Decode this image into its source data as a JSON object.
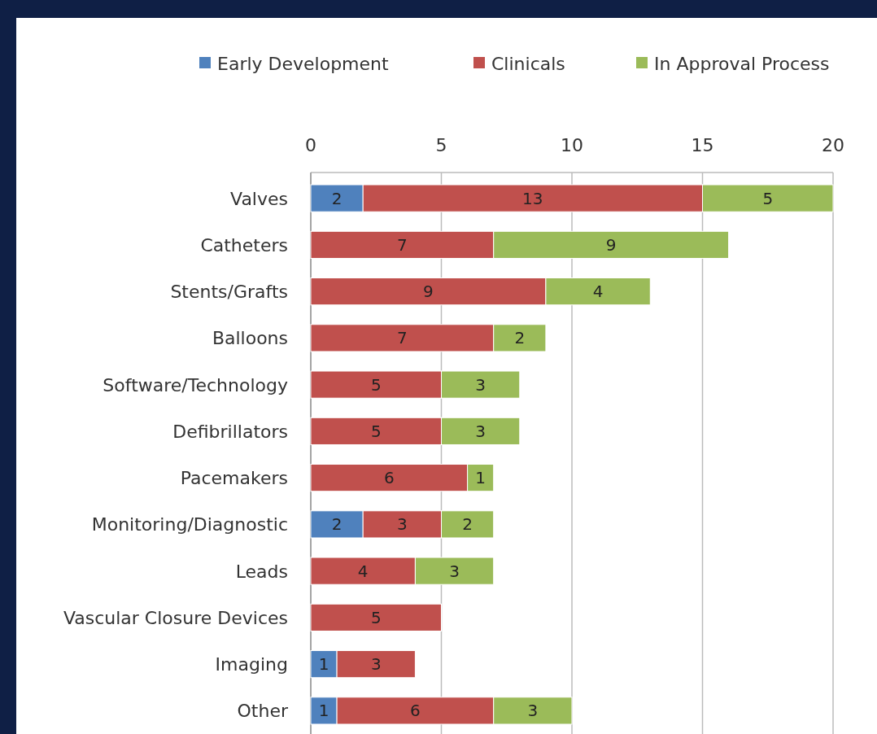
{
  "chart_data": {
    "type": "bar",
    "orientation": "horizontal",
    "stacked": true,
    "data_labels": true,
    "grid": "x",
    "legend": "top",
    "categories": [
      "Valves",
      "Catheters",
      "Stents/Grafts",
      "Balloons",
      "Software/Technology",
      "Defibrillators",
      "Pacemakers",
      "Monitoring/Diagnostic",
      "Leads",
      "Vascular Closure Devices",
      "Imaging",
      "Other"
    ],
    "xlim": [
      0,
      20
    ],
    "xticks": [
      0,
      5,
      10,
      15,
      20
    ],
    "series": [
      {
        "name": "Early Development",
        "color": "#4f81bd",
        "values": [
          2,
          null,
          null,
          null,
          null,
          null,
          null,
          2,
          null,
          null,
          1,
          1
        ]
      },
      {
        "name": "Clinicals",
        "color": "#c0504d",
        "values": [
          13,
          7,
          9,
          7,
          5,
          5,
          6,
          3,
          4,
          5,
          3,
          6
        ]
      },
      {
        "name": "In Approval Process",
        "color": "#9bbb59",
        "values": [
          5,
          9,
          4,
          2,
          3,
          3,
          1,
          2,
          3,
          null,
          null,
          3
        ]
      }
    ]
  }
}
